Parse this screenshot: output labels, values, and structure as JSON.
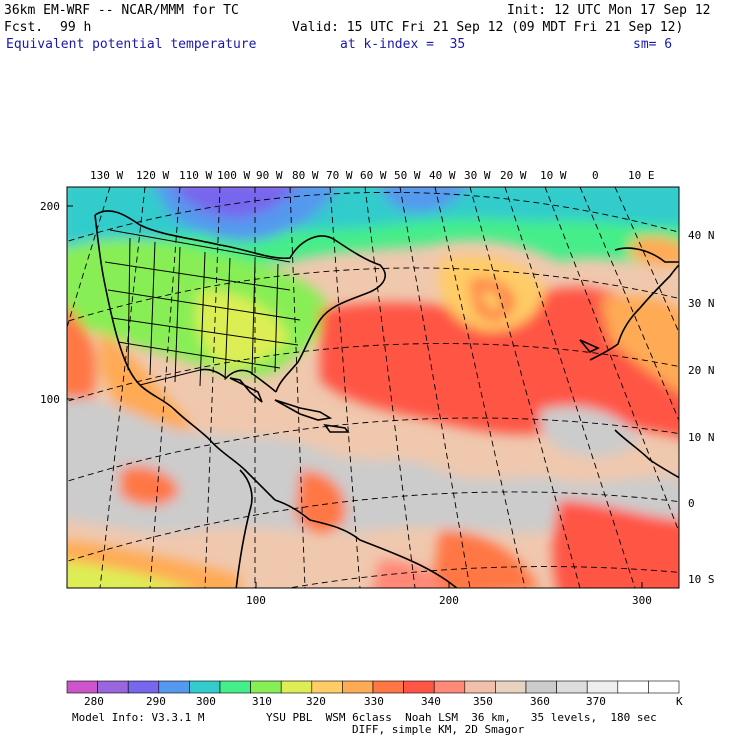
{
  "header": {
    "model": "36km EM-WRF -- NCAR/MMM for TC",
    "init": "Init: 12 UTC Mon 17 Sep 12",
    "fcst_label": "Fcst.",
    "fcst_value": "99 h",
    "valid": "Valid: 15 UTC Fri 21 Sep 12 (09 MDT Fri 21 Sep 12)",
    "field": "Equivalent potential temperature",
    "kindex": "at k-index =  35",
    "smooth": "sm= 6"
  },
  "map": {
    "lon_labels": [
      "130 W",
      "120 W",
      "110 W",
      "100 W",
      "90 W",
      "80 W",
      "70 W",
      "60 W",
      "50 W",
      "40 W",
      "30 W",
      "20 W",
      "10 W",
      "0",
      "10 E"
    ],
    "lat_labels": [
      "40 N",
      "30 N",
      "20 N",
      "10 N",
      "0",
      "10 S"
    ],
    "grid_y_labels": [
      "200",
      "100"
    ],
    "grid_x_labels": [
      "100",
      "200",
      "300"
    ]
  },
  "colorbar": {
    "labels": [
      "280",
      "290",
      "300",
      "310",
      "320",
      "330",
      "340",
      "350",
      "360",
      "370"
    ],
    "unit": "K",
    "colors": [
      "#cc55cc",
      "#9966dd",
      "#7766ee",
      "#5599ee",
      "#33cccc",
      "#44ee88",
      "#88ee55",
      "#ddee55",
      "#ffcc66",
      "#ffaa55",
      "#ff7744",
      "#ff5544",
      "#ff8877",
      "#f0c0aa",
      "#e8d2c0",
      "#cccccc",
      "#dddddd",
      "#eeeeee",
      "#ffffff",
      "#ffffff"
    ]
  },
  "footer": {
    "model_info": "Model Info: V3.3.1 M",
    "physics": "YSU PBL  WSM 6class  Noah LSM  36 km,   35 levels,  180 sec",
    "diff": "DIFF, simple KM, 2D Smagor"
  }
}
